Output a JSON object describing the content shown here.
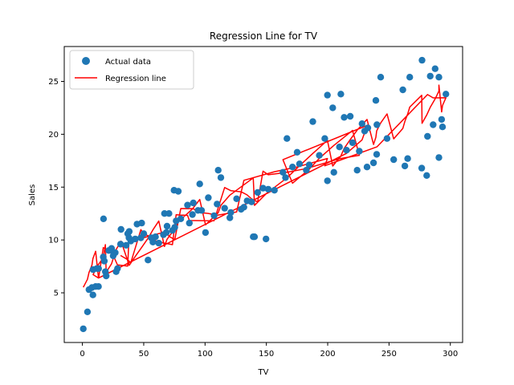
{
  "chart_data": {
    "type": "scatter",
    "title": "Regression Line for TV",
    "xlabel": "TV",
    "ylabel": "Sales",
    "xlim": [
      -14.8,
      310
    ],
    "ylim": [
      0.3,
      28.3
    ],
    "xticks": [
      0,
      50,
      100,
      150,
      200,
      250,
      300
    ],
    "yticks": [
      5,
      10,
      15,
      20,
      25
    ],
    "grid": false,
    "legend": {
      "placement": "top-left",
      "entries": [
        "Actual data",
        "Regression line"
      ]
    },
    "colors": {
      "points": "#1f77b4",
      "line": "#ff0000"
    },
    "regression": {
      "intercept": 7.0,
      "slope": 0.0555
    },
    "series": [
      {
        "name": "Actual data",
        "type": "scatter",
        "points": [
          [
            0.7,
            1.6
          ],
          [
            4.1,
            3.2
          ],
          [
            5.4,
            5.3
          ],
          [
            7.8,
            5.5
          ],
          [
            8.6,
            4.8
          ],
          [
            10.8,
            5.6
          ],
          [
            13.1,
            5.6
          ],
          [
            8.7,
            7.2
          ],
          [
            11.7,
            7.3
          ],
          [
            17.2,
            12.0
          ],
          [
            17.9,
            8.0
          ],
          [
            18.7,
            7.0
          ],
          [
            19.4,
            6.6
          ],
          [
            23.8,
            9.2
          ],
          [
            25.6,
            8.8
          ],
          [
            27.5,
            7.0
          ],
          [
            31.5,
            11.0
          ],
          [
            38.2,
            10.8
          ],
          [
            43.1,
            10.1
          ],
          [
            48.3,
            11.6
          ],
          [
            53.5,
            8.1
          ],
          [
            57.5,
            9.8
          ],
          [
            62.3,
            9.7
          ],
          [
            66.9,
            12.5
          ],
          [
            69.0,
            11.3
          ],
          [
            74.7,
            14.7
          ],
          [
            78.2,
            14.6
          ],
          [
            89.7,
            12.4
          ],
          [
            95.7,
            15.3
          ],
          [
            100.4,
            10.7
          ],
          [
            110.7,
            16.6
          ],
          [
            112.9,
            15.9
          ],
          [
            120.2,
            12.1
          ],
          [
            139.3,
            10.3
          ],
          [
            140.3,
            10.3
          ],
          [
            149.7,
            10.1
          ],
          [
            166.8,
            19.6
          ],
          [
            177.0,
            17.2
          ],
          [
            187.9,
            21.2
          ],
          [
            199.8,
            23.7
          ],
          [
            204.1,
            22.5
          ],
          [
            210.7,
            23.8
          ],
          [
            213.4,
            21.6
          ],
          [
            218.4,
            21.7
          ],
          [
            224.0,
            16.6
          ],
          [
            232.1,
            16.9
          ],
          [
            237.4,
            17.3
          ],
          [
            239.3,
            23.2
          ],
          [
            239.9,
            18.1
          ],
          [
            243.2,
            25.4
          ],
          [
            248.4,
            19.6
          ],
          [
            253.8,
            17.6
          ],
          [
            261.3,
            24.2
          ],
          [
            262.9,
            17.0
          ],
          [
            265.2,
            17.7
          ],
          [
            266.9,
            25.4
          ],
          [
            276.7,
            16.8
          ],
          [
            276.9,
            27.0
          ],
          [
            280.7,
            16.1
          ],
          [
            283.6,
            25.5
          ],
          [
            287.6,
            26.2
          ],
          [
            290.7,
            25.4
          ],
          [
            290.7,
            17.8
          ],
          [
            292.9,
            21.4
          ],
          [
            293.6,
            20.7
          ],
          [
            296.4,
            23.8
          ],
          [
            286.0,
            20.9
          ],
          [
            281.4,
            19.8
          ],
          [
            240.1,
            20.9
          ],
          [
            197.6,
            19.6
          ],
          [
            199.8,
            15.6
          ],
          [
            175.1,
            18.3
          ],
          [
            156.6,
            14.7
          ],
          [
            131.7,
            13.1
          ],
          [
            125.7,
            13.9
          ],
          [
            109.8,
            13.4
          ],
          [
            102.7,
            14.0
          ],
          [
            94.2,
            12.8
          ],
          [
            90.4,
            13.5
          ],
          [
            80.2,
            12.0
          ],
          [
            75.3,
            11.2
          ],
          [
            70.6,
            12.5
          ],
          [
            68.4,
            10.7
          ],
          [
            44.5,
            11.5
          ],
          [
            38.0,
            10.2
          ],
          [
            36.9,
            10.6
          ],
          [
            28.6,
            7.3
          ],
          [
            26.8,
            8.8
          ],
          [
            25.1,
            8.5
          ],
          [
            21.5,
            9.0
          ],
          [
            17.0,
            8.4
          ],
          [
            13.2,
            7.3
          ],
          [
            215.4,
            18.5
          ],
          [
            228.0,
            21.0
          ],
          [
            230.1,
            20.3
          ],
          [
            232.7,
            20.6
          ],
          [
            163.5,
            16.4
          ],
          [
            171.3,
            16.9
          ],
          [
            184.9,
            17.1
          ],
          [
            193.2,
            18.0
          ],
          [
            205.0,
            16.4
          ],
          [
            220.3,
            19.2
          ],
          [
            225.8,
            18.4
          ],
          [
            209.6,
            18.8
          ],
          [
            182.6,
            16.6
          ],
          [
            165.6,
            15.9
          ],
          [
            151.5,
            14.8
          ],
          [
            147.3,
            14.9
          ],
          [
            142.9,
            14.5
          ],
          [
            137.9,
            13.6
          ],
          [
            134.3,
            13.7
          ],
          [
            129.4,
            12.9
          ],
          [
            121.0,
            12.6
          ],
          [
            116.0,
            13.0
          ],
          [
            107.4,
            12.3
          ],
          [
            97.2,
            12.8
          ],
          [
            87.2,
            11.6
          ],
          [
            85.7,
            13.3
          ],
          [
            76.4,
            11.8
          ],
          [
            73.4,
            10.9
          ],
          [
            66.1,
            10.5
          ],
          [
            59.6,
            10.3
          ],
          [
            56.2,
            10.2
          ],
          [
            50.0,
            10.6
          ],
          [
            47.7,
            10.2
          ],
          [
            39.5,
            9.9
          ],
          [
            35.7,
            9.5
          ],
          [
            31.1,
            9.6
          ]
        ]
      }
    ]
  }
}
